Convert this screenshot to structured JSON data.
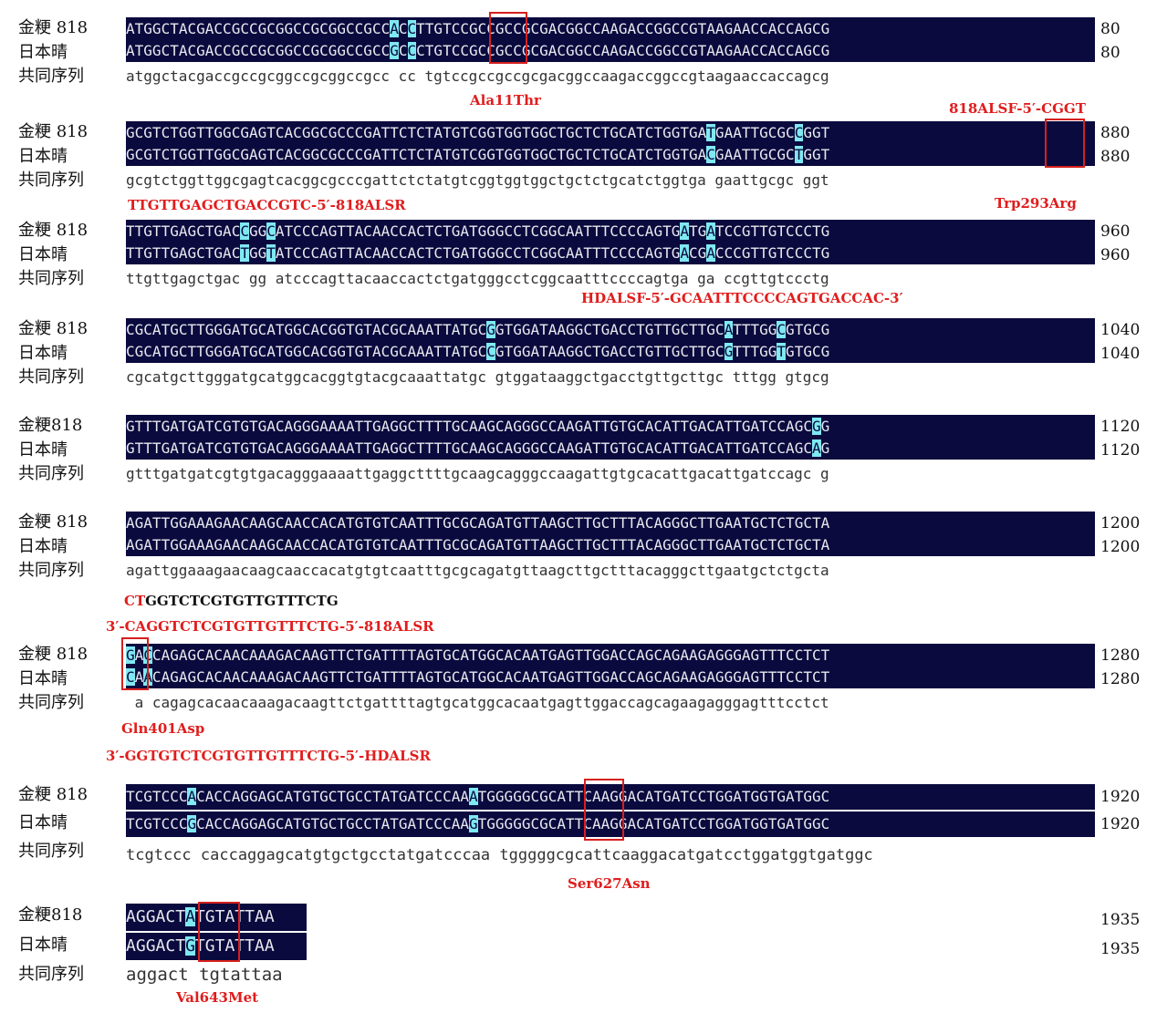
{
  "labels": {
    "jingeng": "金粳 818",
    "jingeng_b": "金粳818",
    "nipponbare": "日本晴",
    "consensus": "共同序列"
  },
  "blocks": [
    {
      "a": "ATGGCTACGACCGCCGCGGCCGCGGCCGCCACCTTGTCCGCCGCCGCGACGGCCAAGACCGGCCGTAAGAACCACCAGCG",
      "b": "ATGGCTACGACCGCCGCGGCCGCGGCCGCCGCCCTGTCCGCCGCCGCGACGGCCAAGACCGGCCGTAAGAACCACCAGCG",
      "c": "atggctacgaccgccgcggccgcggccgcc cc tgtccgccgccgcgacggccaagaccggccgtaagaaccaccagcg",
      "end": "80"
    },
    {
      "a": "GCGTCTGGTTGGCGAGTCACGGCGCCCGATTCTCTATGTCGGTGGTGGCTGCTCTGCATCTGGTGATGAATTGCGCCGGT",
      "b": "GCGTCTGGTTGGCGAGTCACGGCGCCCGATTCTCTATGTCGGTGGTGGCTGCTCTGCATCTGGTGACGAATTGCGCTGGT",
      "c": "gcgtctggttggcgagtcacggcgcccgattctctatgtcggtggtggctgctctgcatctggtga gaattgcgc ggt",
      "end": "880"
    },
    {
      "a": "TTGTTGAGCTGACCGGCATCCCAGTTACAACCACTCTGATGGGCCTCGGCAATTTCCCCAGTGATGATCCGTTGTCCCTG",
      "b": "TTGTTGAGCTGACTGGTATCCCAGTTACAACCACTCTGATGGGCCTCGGCAATTTCCCCAGTGACGACCCGTTGTCCCTG",
      "c": "ttgttgagctgac gg atcccagttacaaccactctgatgggcctcggcaatttccccagtga ga ccgttgtccctg",
      "end": "960"
    },
    {
      "a": "CGCATGCTTGGGATGCATGGCACGGTGTACGCAAATTATGCGGTGGATAAGGCTGACCTGTTGCTTGCATTTGGCGTGCG",
      "b": "CGCATGCTTGGGATGCATGGCACGGTGTACGCAAATTATGCCGTGGATAAGGCTGACCTGTTGCTTGCGTTTGGTGTGCG",
      "c": "cgcatgcttgggatgcatggcacggtgtacgcaaattatgc gtggataaggctgacctgttgcttgc tttgg gtgcg",
      "end": "1040"
    },
    {
      "a": "GTTTGATGATCGTGTGACAGGGAAAATTGAGGCTTTTGCAAGCAGGGCCAAGATTGTGCACATTGACATTGATCCAGCGG",
      "b": "GTTTGATGATCGTGTGACAGGGAAAATTGAGGCTTTTGCAAGCAGGGCCAAGATTGTGCACATTGACATTGATCCAGCAG",
      "c": "gtttgatgatcgtgtgacagggaaaattgaggcttttgcaagcagggccaagattgtgcacattgacattgatccagc g",
      "end": "1120"
    },
    {
      "a": "AGATTGGAAAGAACAAGCAACCACATGTGTCAATTTGCGCAGATGTTAAGCTTGCTTTACAGGGCTTGAATGCTCTGCTA",
      "b": "AGATTGGAAAGAACAAGCAACCACATGTGTCAATTTGCGCAGATGTTAAGCTTGCTTTACAGGGCTTGAATGCTCTGCTA",
      "c": "agattggaaagaacaagcaaccacatgtgtcaatttgcgcagatgttaagcttgctttacagggcttgaatgctctgcta",
      "end": "1200"
    },
    {
      "a": "GACCAGAGCACAACAAAGACAAGTTCTGATTTTAGTGCATGGCACAATGAGTTGGACCAGCAGAAGAGGGAGTTTCCTCT",
      "b": "CAACAGAGCACAACAAAGACAAGTTCTGATTTTAGTGCATGGCACAATGAGTTGGACCAGCAGAAGAGGGAGTTTCCTCT",
      "c": " a cagagcacaacaaagacaagttctgattttagtgcatggcacaatgagttggaccagcagaagagggagtttcctct",
      "end": "1280"
    },
    {
      "a": "TCGTCCCACACCAGGAGCATGTGCTGCCTATGATCCCAAATGGGGGCGCATTCAAGGACATGATCCTGGATGGTGATGGC",
      "b": "TCGTCCCGCACCAGGAGCATGTGCTGCCTATGATCCCAAGTGGGGGCGCATTCAAGGACATGATCCTGGATGGTGATGGC",
      "c": "tcgtccc caccaggagcatgtgctgcctatgatcccaa tgggggcgcattcaaggacatgatcctggatggtgatggc",
      "end": "1920"
    },
    {
      "a": "AGGACTATGTATTAA",
      "b": "AGGACTGTGTATTAA",
      "c": "aggact tgtattaa",
      "end": "1935"
    }
  ],
  "annotations": {
    "ala11thr": "Ala11Thr",
    "f818_fwd": "818ALSF-5′-CGGT",
    "r818_rev": "TTGTTGAGCTGACCGTC-5′-818ALSR",
    "trp293arg": "Trp293Arg",
    "hdalsf": "HDALSF-5′-GCAATTTCCCCAGTGACCAC-3′",
    "ct_red": "CT",
    "ct_rest": "GGTCTCGTGTTGTTTCTG",
    "r818_primer": "3′-CAGGTCTCGTGTTGTTTCTG-5′-818ALSR",
    "gln401asp": "Gln401Asp",
    "hdalsr": "3′-GGTGTCTCGTGTTGTTTCTG-5′-HDALSR",
    "ser627asn": "Ser627Asn",
    "val643met": "Val643Met"
  }
}
